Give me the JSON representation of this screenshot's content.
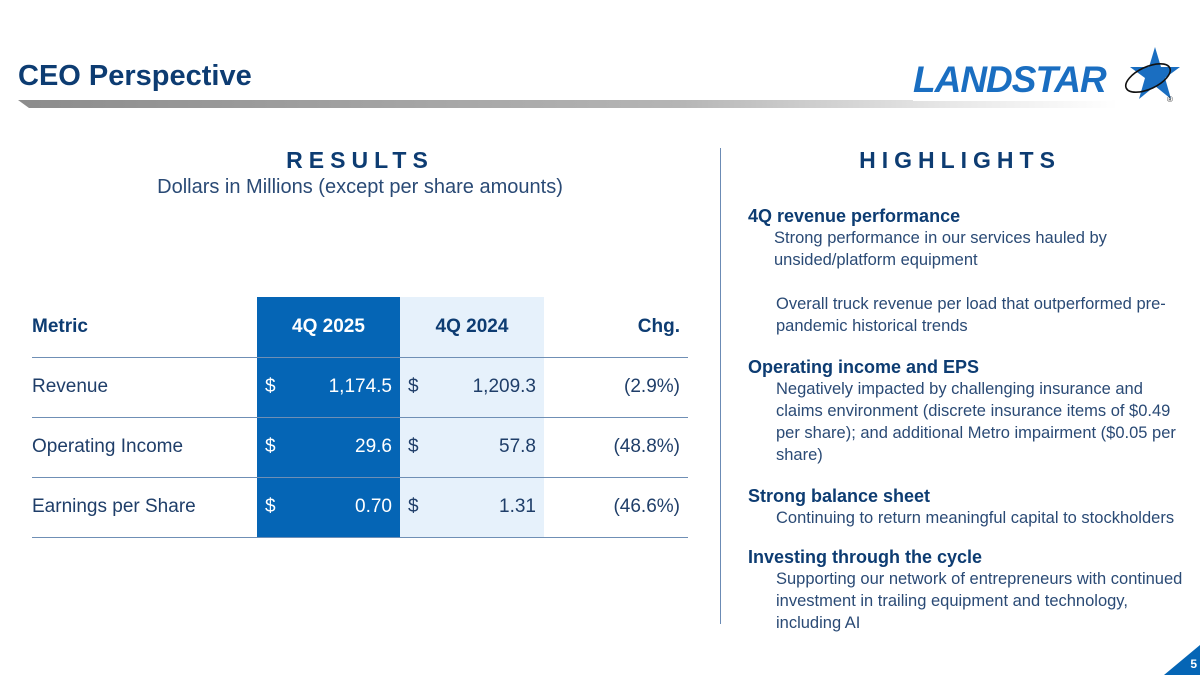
{
  "header": {
    "title": "CEO Perspective",
    "logo_text": "LANDSTAR",
    "logo_mark": "®"
  },
  "results": {
    "heading": "RESULTS",
    "subheading": "Dollars in Millions (except per share amounts)",
    "columns": [
      "Metric",
      "4Q 2025",
      "4Q 2024",
      "Chg."
    ],
    "rows": [
      {
        "metric": "Revenue",
        "cur_sym": "$",
        "cur": "1,174.5",
        "prev_sym": "$",
        "prev": "1,209.3",
        "chg": "(2.9%)"
      },
      {
        "metric": "Operating Income",
        "cur_sym": "$",
        "cur": "29.6",
        "prev_sym": "$",
        "prev": "57.8",
        "chg": "(48.8%)"
      },
      {
        "metric": "Earnings per Share",
        "cur_sym": "$",
        "cur": "0.70",
        "prev_sym": "$",
        "prev": "1.31",
        "chg": "(46.6%)"
      }
    ]
  },
  "highlights": {
    "heading": "HIGHLIGHTS",
    "items": [
      {
        "title": "4Q revenue performance",
        "lines": [
          "Strong performance in our services hauled by unsided/platform equipment",
          "Overall truck revenue per load that outperformed pre-pandemic historical trends"
        ]
      },
      {
        "title": "Operating income and EPS",
        "lines": [
          "Negatively impacted by challenging insurance and claims environment (discrete insurance items of $0.49 per share); and additional Metro impairment ($0.05 per share)"
        ]
      },
      {
        "title": "Strong balance sheet",
        "lines": [
          "Continuing to return meaningful capital to stockholders"
        ]
      },
      {
        "title": "Investing through the cycle",
        "lines": [
          "Supporting our network of entrepreneurs with continued investment in trailing equipment and technology, including AI"
        ]
      }
    ]
  },
  "page_number": "5",
  "colors": {
    "navy": "#0d3c72",
    "blue": "#0565b5",
    "light_blue": "#e6f1fb"
  }
}
